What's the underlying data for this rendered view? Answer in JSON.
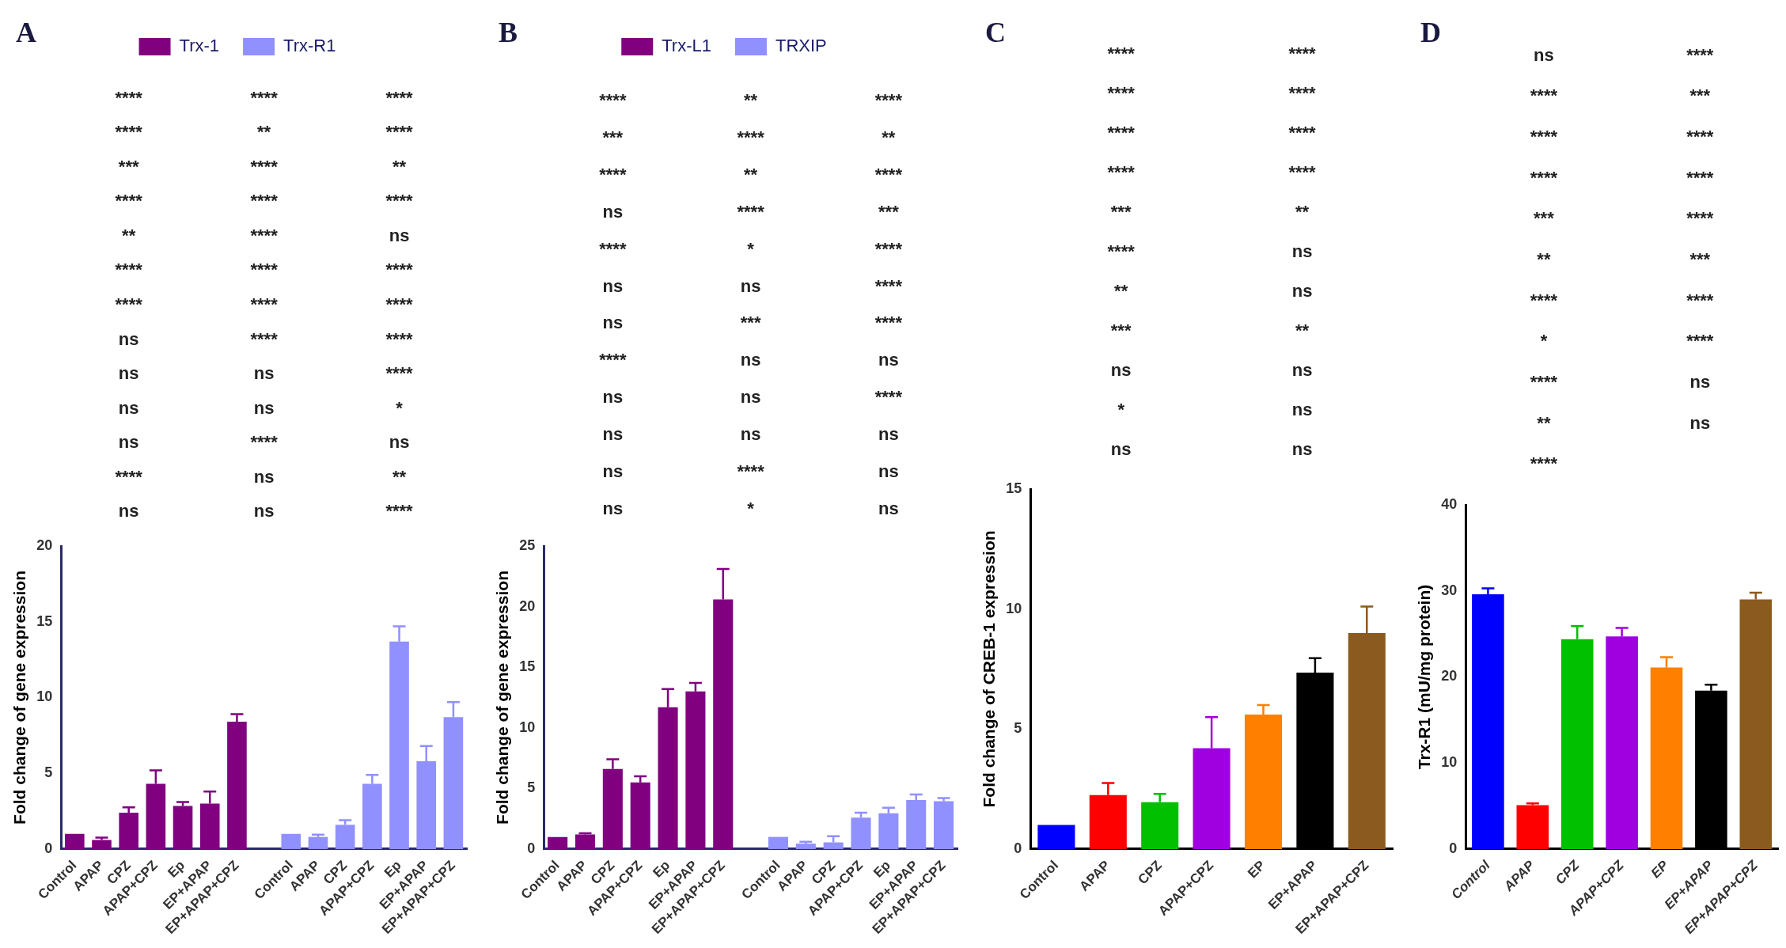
{
  "chart_data": [
    {
      "type": "bar",
      "title": "A",
      "ylabel": "Fold change of gene expression",
      "categories": [
        "Control",
        "APAP",
        "CPZ",
        "APAP+CPZ",
        "Ep",
        "EP+APAP",
        "EP+APAP+CPZ",
        null,
        "Control",
        "APAP",
        "CPZ",
        "APAP+CPZ",
        "Ep",
        "EP+APAP",
        "EP+APAP+CPZ"
      ],
      "series": [
        {
          "name": "Trx-1",
          "color": "#800080",
          "values": [
            1.0,
            0.6,
            2.4,
            4.3,
            2.85,
            3.0,
            8.4,
            null,
            null,
            null,
            null,
            null,
            null,
            null,
            null
          ],
          "errors": [
            null,
            0.15,
            0.35,
            0.9,
            0.25,
            0.8,
            0.5,
            null,
            null,
            null,
            null,
            null,
            null,
            null,
            null
          ]
        },
        {
          "name": "Trx-R1",
          "color": "#9090ff",
          "values": [
            null,
            null,
            null,
            null,
            null,
            null,
            null,
            null,
            1.0,
            0.8,
            1.6,
            4.3,
            13.7,
            5.8,
            8.7
          ],
          "errors": [
            null,
            null,
            null,
            null,
            null,
            null,
            null,
            null,
            null,
            0.15,
            0.3,
            0.6,
            1.0,
            1.0,
            1.0
          ]
        }
      ],
      "ylim": [
        0,
        20
      ],
      "yticks": [
        0,
        5,
        10,
        15,
        20
      ],
      "legend": "top",
      "annotations": [
        "****",
        "****",
        "****",
        "****",
        "**",
        "****",
        "***",
        "****",
        "**",
        "****",
        "****",
        "****",
        "**",
        "****",
        "ns",
        "****",
        "****",
        "****",
        "****",
        "****",
        "****",
        "ns",
        "****",
        "****",
        "ns",
        "ns",
        "****",
        "ns",
        "ns",
        "*",
        "ns",
        "****",
        "ns",
        "****",
        "ns",
        "**",
        "ns",
        "ns",
        "****"
      ]
    },
    {
      "type": "bar",
      "title": "B",
      "ylabel": "Fold change of gene expression",
      "categories": [
        "Control",
        "APAP",
        "CPZ",
        "APAP+CPZ",
        "Ep",
        "EP+APAP",
        "EP+APAP+CPZ",
        null,
        "Control",
        "APAP",
        "CPZ",
        "APAP+CPZ",
        "Ep",
        "EP+APAP",
        "EP+APAP+CPZ"
      ],
      "series": [
        {
          "name": "Trx-L1",
          "color": "#800080",
          "values": [
            1.0,
            1.2,
            6.6,
            5.5,
            11.7,
            13.0,
            20.6,
            null,
            null,
            null,
            null,
            null,
            null,
            null,
            null
          ],
          "errors": [
            null,
            0.1,
            0.8,
            0.5,
            1.5,
            0.7,
            2.5,
            null,
            null,
            null,
            null,
            null,
            null,
            null,
            null
          ]
        },
        {
          "name": "TRXIP",
          "color": "#9090ff",
          "values": [
            null,
            null,
            null,
            null,
            null,
            null,
            null,
            null,
            1.0,
            0.45,
            0.55,
            2.6,
            2.95,
            4.05,
            3.95
          ],
          "errors": [
            null,
            null,
            null,
            null,
            null,
            null,
            null,
            null,
            null,
            0.15,
            0.5,
            0.4,
            0.45,
            0.45,
            0.25
          ]
        }
      ],
      "ylim": [
        0,
        25
      ],
      "yticks": [
        0,
        5,
        10,
        15,
        20,
        25
      ],
      "legend": "top",
      "annotations": [
        "****",
        "**",
        "****",
        "***",
        "****",
        "**",
        "****",
        "**",
        "****",
        "ns",
        "****",
        "***",
        "****",
        "*",
        "****",
        "ns",
        "ns",
        "****",
        "ns",
        "***",
        "****",
        "****",
        "ns",
        "ns",
        "ns",
        "ns",
        "****",
        "ns",
        "ns",
        "ns",
        "ns",
        "****",
        "ns",
        "ns",
        "*",
        "ns"
      ]
    },
    {
      "type": "bar",
      "title": "C",
      "ylabel": "Fold change of CREB-1 expression",
      "categories": [
        "Control",
        "APAP",
        "CPZ",
        "APAP+CPZ",
        "EP",
        "EP+APAP",
        "EP+APAP+CPZ"
      ],
      "values": [
        1.0,
        2.25,
        1.95,
        4.2,
        5.6,
        7.35,
        9.0
      ],
      "errors": [
        null,
        0.5,
        0.35,
        1.3,
        0.4,
        0.6,
        1.1
      ],
      "colors": [
        "#0000ff",
        "#ff0000",
        "#00c000",
        "#a000e0",
        "#ff8000",
        "#000000",
        "#8b5a1e"
      ],
      "ylim": [
        0,
        15
      ],
      "yticks": [
        0,
        5,
        10,
        15
      ],
      "annotations": [
        "****",
        "****",
        "****",
        "****",
        "****",
        "****",
        "****",
        "****",
        "***",
        "**",
        "****",
        "ns",
        "**",
        "ns",
        "***",
        "**",
        "ns",
        "ns",
        "*",
        "ns",
        "ns",
        "ns"
      ]
    },
    {
      "type": "bar",
      "title": "D",
      "ylabel": "Trx-R1 (mU/mg protein)",
      "categories": [
        "Control",
        "APAP",
        "CPZ",
        "APAP+CPZ",
        "EP",
        "EP+APAP",
        "EP+APAP+CPZ"
      ],
      "values": [
        29.6,
        5.1,
        24.4,
        24.7,
        21.1,
        18.4,
        29.0
      ],
      "errors": [
        0.7,
        0.2,
        1.5,
        1.0,
        1.2,
        0.7,
        0.8
      ],
      "colors": [
        "#0000ff",
        "#ff0000",
        "#00c000",
        "#a000e0",
        "#ff8000",
        "#000000",
        "#8b5a1e"
      ],
      "ylim": [
        0,
        40
      ],
      "yticks": [
        0,
        10,
        20,
        30,
        40
      ],
      "annotations": [
        "ns",
        "****",
        "****",
        "***",
        "****",
        "****",
        "****",
        "****",
        "***",
        "****",
        "**",
        "***",
        "****",
        "****",
        "*",
        "****",
        "****",
        "ns",
        "**",
        "ns",
        "****"
      ]
    }
  ]
}
